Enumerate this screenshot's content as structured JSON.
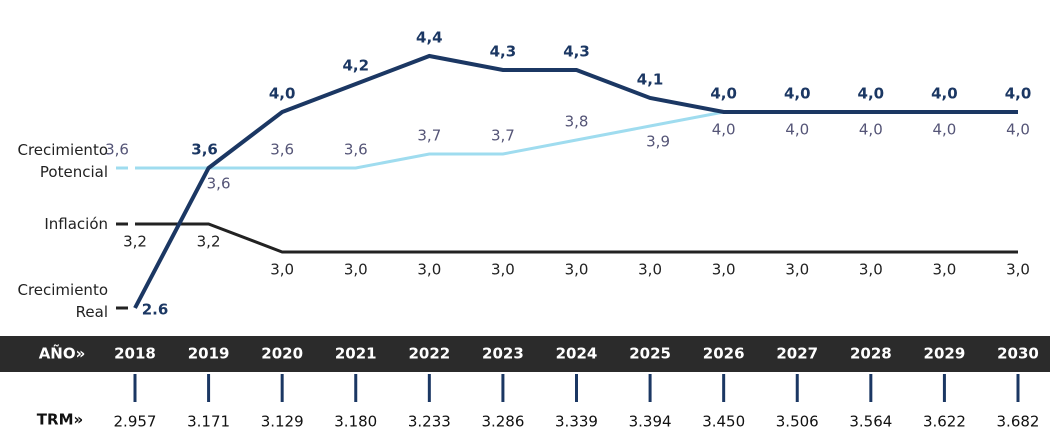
{
  "chart_data": {
    "type": "line",
    "categories": [
      "2018",
      "2019",
      "2020",
      "2021",
      "2022",
      "2023",
      "2024",
      "2025",
      "2026",
      "2027",
      "2028",
      "2029",
      "2030"
    ],
    "series": [
      {
        "name": "Crecimiento Potencial",
        "color": "#9fdcef",
        "values": [
          3.6,
          3.6,
          3.6,
          3.6,
          3.7,
          3.7,
          3.8,
          3.9,
          4.0,
          4.0,
          4.0,
          4.0,
          4.0
        ],
        "value_labels": [
          "3,6",
          "3,6",
          "3,6",
          "3,6",
          "3,7",
          "3,7",
          "3,8",
          "3,9",
          "4,0",
          "4,0",
          "4,0",
          "4,0",
          "4,0"
        ]
      },
      {
        "name": "Inflación",
        "color": "#222222",
        "values": [
          3.2,
          3.2,
          3.0,
          3.0,
          3.0,
          3.0,
          3.0,
          3.0,
          3.0,
          3.0,
          3.0,
          3.0,
          3.0
        ],
        "value_labels": [
          "3,2",
          "3,2",
          "3,0",
          "3,0",
          "3,0",
          "3,0",
          "3,0",
          "3,0",
          "3,0",
          "3,0",
          "3,0",
          "3,0",
          "3,0"
        ]
      },
      {
        "name": "Crecimiento Real",
        "color": "#1b3763",
        "values": [
          2.6,
          3.6,
          4.0,
          4.2,
          4.4,
          4.3,
          4.3,
          4.1,
          4.0,
          4.0,
          4.0,
          4.0,
          4.0
        ],
        "value_labels": [
          "2.6",
          "3,6",
          "4,0",
          "4,2",
          "4,4",
          "4,3",
          "4,3",
          "4,1",
          "4,0",
          "4,0",
          "4,0",
          "4,0",
          "4,0"
        ]
      }
    ],
    "ylim": [
      2.5,
      4.5
    ],
    "year_label": "AÑO»",
    "trm_label": "TRM»",
    "trm_values": [
      "2.957",
      "3.171",
      "3.129",
      "3.180",
      "3.233",
      "3.286",
      "3.339",
      "3.394",
      "3.450",
      "3.506",
      "3.564",
      "3.622",
      "3.682"
    ]
  }
}
